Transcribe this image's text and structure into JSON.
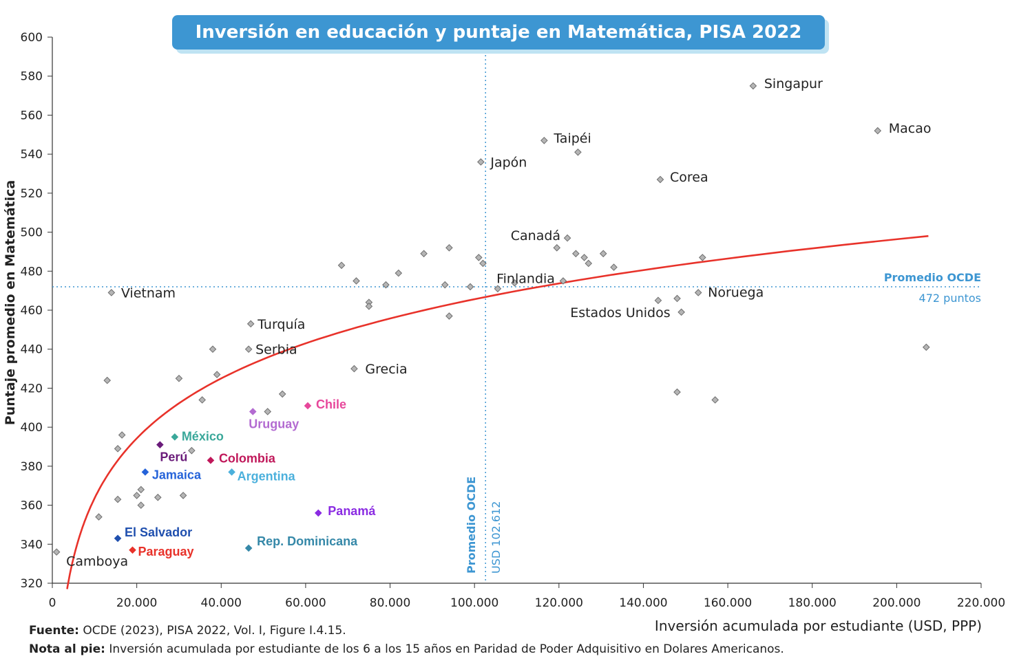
{
  "title": "Inversión en educación y puntaje en Matemática, PISA 2022",
  "footer": {
    "source_label": "Fuente:",
    "source_text": " OCDE (2023), PISA 2022, Vol. I, Figure I.4.15.",
    "note_label": "Nota al pie:",
    "note_text": " Inversión acumulada por estudiante de los 6 a los 15 años en Paridad de Poder Adquisitivo en Dolares Americanos."
  },
  "chart_data": {
    "type": "scatter",
    "title": "Inversión en educación y puntaje en Matemática, PISA 2022",
    "xlabel": "Inversión acumulada por estudiante (USD, PPP)",
    "ylabel": "Puntaje promedio en Matemática",
    "xlim": [
      0,
      220000
    ],
    "ylim": [
      320,
      600
    ],
    "x_ticks": [
      0,
      20000,
      40000,
      60000,
      80000,
      100000,
      120000,
      140000,
      160000,
      180000,
      200000,
      220000
    ],
    "x_tick_labels": [
      "0",
      "20.000",
      "40.000",
      "60.000",
      "80.000",
      "100.000",
      "120.000",
      "140.000",
      "160.000",
      "180.000",
      "200.000",
      "220.000"
    ],
    "y_ticks": [
      320,
      340,
      360,
      380,
      400,
      420,
      440,
      460,
      480,
      500,
      520,
      540,
      560,
      580,
      600
    ],
    "grid": false,
    "reference_lines": {
      "horizontal": {
        "y": 472,
        "label_line1": "Promedio OCDE",
        "label_line2": "472 puntos",
        "color": "#3d96d2"
      },
      "vertical": {
        "x": 102612,
        "label_line1": "Promedio OCDE",
        "label_line2": "USD 102.612",
        "color": "#3d96d2"
      }
    },
    "trend": {
      "type": "logarithmic",
      "color": "#e8322a",
      "x_start": 3500,
      "x_end": 207500
    },
    "points": [
      {
        "x": 1000,
        "y": 336,
        "label": "Camboya",
        "color": "#999999",
        "bold": false
      },
      {
        "x": 14000,
        "y": 469,
        "label": "Vietnam",
        "color": "#999999",
        "bold": false
      },
      {
        "x": 47000,
        "y": 453,
        "label": "Turquía",
        "color": "#999999",
        "bold": false
      },
      {
        "x": 46500,
        "y": 440,
        "label": "Serbia",
        "color": "#999999",
        "bold": false
      },
      {
        "x": 71500,
        "y": 430,
        "label": "Grecia",
        "color": "#999999",
        "bold": false
      },
      {
        "x": 101500,
        "y": 536,
        "label": "Japón",
        "color": "#999999",
        "bold": false
      },
      {
        "x": 116500,
        "y": 547,
        "label": "Taipéi",
        "color": "#999999",
        "bold": false
      },
      {
        "x": 166000,
        "y": 575,
        "label": "Singapur",
        "color": "#999999",
        "bold": false
      },
      {
        "x": 195500,
        "y": 552,
        "label": "Macao",
        "color": "#999999",
        "bold": false
      },
      {
        "x": 144000,
        "y": 527,
        "label": "Corea",
        "color": "#999999",
        "bold": false
      },
      {
        "x": 122000,
        "y": 497,
        "label": "Canadá",
        "color": "#999999",
        "bold": false
      },
      {
        "x": 121000,
        "y": 475,
        "label": "Finlandia",
        "color": "#999999",
        "bold": false
      },
      {
        "x": 153000,
        "y": 469,
        "label": "Noruega",
        "color": "#999999",
        "bold": false
      },
      {
        "x": 149000,
        "y": 459,
        "label": "Estados Unidos",
        "color": "#999999",
        "bold": false
      },
      {
        "x": 60500,
        "y": 411,
        "label": "Chile",
        "color": "#e7479b",
        "bold": true
      },
      {
        "x": 47500,
        "y": 408,
        "label": "Uruguay",
        "color": "#b36bd1",
        "bold": true
      },
      {
        "x": 29000,
        "y": 395,
        "label": "México",
        "color": "#3aa89a",
        "bold": true
      },
      {
        "x": 25500,
        "y": 391,
        "label": "Perú",
        "color": "#6a1b7a",
        "bold": true
      },
      {
        "x": 37500,
        "y": 383,
        "label": "Colombia",
        "color": "#c0185a",
        "bold": true
      },
      {
        "x": 22000,
        "y": 377,
        "label": "Jamaica",
        "color": "#2563d9",
        "bold": true
      },
      {
        "x": 42500,
        "y": 377,
        "label": "Argentina",
        "color": "#4bb0dc",
        "bold": true
      },
      {
        "x": 63000,
        "y": 356,
        "label": "Panamá",
        "color": "#8a2be2",
        "bold": true
      },
      {
        "x": 15500,
        "y": 343,
        "label": "El Salvador",
        "color": "#1f4fae",
        "bold": true
      },
      {
        "x": 19000,
        "y": 337,
        "label": "Paraguay",
        "color": "#e8322a",
        "bold": true
      },
      {
        "x": 46500,
        "y": 338,
        "label": "Rep. Dominicana",
        "color": "#3588a8",
        "bold": true
      },
      {
        "x": 13000,
        "y": 424,
        "label": "",
        "color": "#999999",
        "bold": false
      },
      {
        "x": 16500,
        "y": 396,
        "label": "",
        "color": "#999999",
        "bold": false
      },
      {
        "x": 15500,
        "y": 389,
        "label": "",
        "color": "#999999",
        "bold": false
      },
      {
        "x": 15500,
        "y": 363,
        "label": "",
        "color": "#999999",
        "bold": false
      },
      {
        "x": 11000,
        "y": 354,
        "label": "",
        "color": "#999999",
        "bold": false
      },
      {
        "x": 20000,
        "y": 365,
        "label": "",
        "color": "#999999",
        "bold": false
      },
      {
        "x": 21000,
        "y": 368,
        "label": "",
        "color": "#999999",
        "bold": false
      },
      {
        "x": 21000,
        "y": 360,
        "label": "",
        "color": "#999999",
        "bold": false
      },
      {
        "x": 25000,
        "y": 364,
        "label": "",
        "color": "#999999",
        "bold": false
      },
      {
        "x": 30000,
        "y": 425,
        "label": "",
        "color": "#999999",
        "bold": false
      },
      {
        "x": 31000,
        "y": 365,
        "label": "",
        "color": "#999999",
        "bold": false
      },
      {
        "x": 33000,
        "y": 388,
        "label": "",
        "color": "#999999",
        "bold": false
      },
      {
        "x": 35500,
        "y": 414,
        "label": "",
        "color": "#999999",
        "bold": false
      },
      {
        "x": 38000,
        "y": 440,
        "label": "",
        "color": "#999999",
        "bold": false
      },
      {
        "x": 39000,
        "y": 427,
        "label": "",
        "color": "#999999",
        "bold": false
      },
      {
        "x": 51000,
        "y": 408,
        "label": "",
        "color": "#999999",
        "bold": false
      },
      {
        "x": 54500,
        "y": 417,
        "label": "",
        "color": "#999999",
        "bold": false
      },
      {
        "x": 68500,
        "y": 483,
        "label": "",
        "color": "#999999",
        "bold": false
      },
      {
        "x": 72000,
        "y": 475,
        "label": "",
        "color": "#999999",
        "bold": false
      },
      {
        "x": 75000,
        "y": 464,
        "label": "",
        "color": "#999999",
        "bold": false
      },
      {
        "x": 75000,
        "y": 462,
        "label": "",
        "color": "#999999",
        "bold": false
      },
      {
        "x": 79000,
        "y": 473,
        "label": "",
        "color": "#999999",
        "bold": false
      },
      {
        "x": 82000,
        "y": 479,
        "label": "",
        "color": "#999999",
        "bold": false
      },
      {
        "x": 88000,
        "y": 489,
        "label": "",
        "color": "#999999",
        "bold": false
      },
      {
        "x": 93000,
        "y": 473,
        "label": "",
        "color": "#999999",
        "bold": false
      },
      {
        "x": 94000,
        "y": 492,
        "label": "",
        "color": "#999999",
        "bold": false
      },
      {
        "x": 94000,
        "y": 457,
        "label": "",
        "color": "#999999",
        "bold": false
      },
      {
        "x": 99000,
        "y": 472,
        "label": "",
        "color": "#999999",
        "bold": false
      },
      {
        "x": 101000,
        "y": 487,
        "label": "",
        "color": "#999999",
        "bold": false
      },
      {
        "x": 102000,
        "y": 484,
        "label": "",
        "color": "#999999",
        "bold": false
      },
      {
        "x": 105500,
        "y": 471,
        "label": "",
        "color": "#999999",
        "bold": false
      },
      {
        "x": 109500,
        "y": 474,
        "label": "",
        "color": "#999999",
        "bold": false
      },
      {
        "x": 119500,
        "y": 492,
        "label": "",
        "color": "#999999",
        "bold": false
      },
      {
        "x": 124000,
        "y": 489,
        "label": "",
        "color": "#999999",
        "bold": false
      },
      {
        "x": 124500,
        "y": 541,
        "label": "",
        "color": "#999999",
        "bold": false
      },
      {
        "x": 126000,
        "y": 487,
        "label": "",
        "color": "#999999",
        "bold": false
      },
      {
        "x": 127000,
        "y": 484,
        "label": "",
        "color": "#999999",
        "bold": false
      },
      {
        "x": 130500,
        "y": 489,
        "label": "",
        "color": "#999999",
        "bold": false
      },
      {
        "x": 133000,
        "y": 482,
        "label": "",
        "color": "#999999",
        "bold": false
      },
      {
        "x": 143500,
        "y": 465,
        "label": "",
        "color": "#999999",
        "bold": false
      },
      {
        "x": 148000,
        "y": 466,
        "label": "",
        "color": "#999999",
        "bold": false
      },
      {
        "x": 148000,
        "y": 418,
        "label": "",
        "color": "#999999",
        "bold": false
      },
      {
        "x": 154000,
        "y": 487,
        "label": "",
        "color": "#999999",
        "bold": false
      },
      {
        "x": 157000,
        "y": 414,
        "label": "",
        "color": "#999999",
        "bold": false
      },
      {
        "x": 207000,
        "y": 441,
        "label": "",
        "color": "#999999",
        "bold": false
      }
    ]
  }
}
